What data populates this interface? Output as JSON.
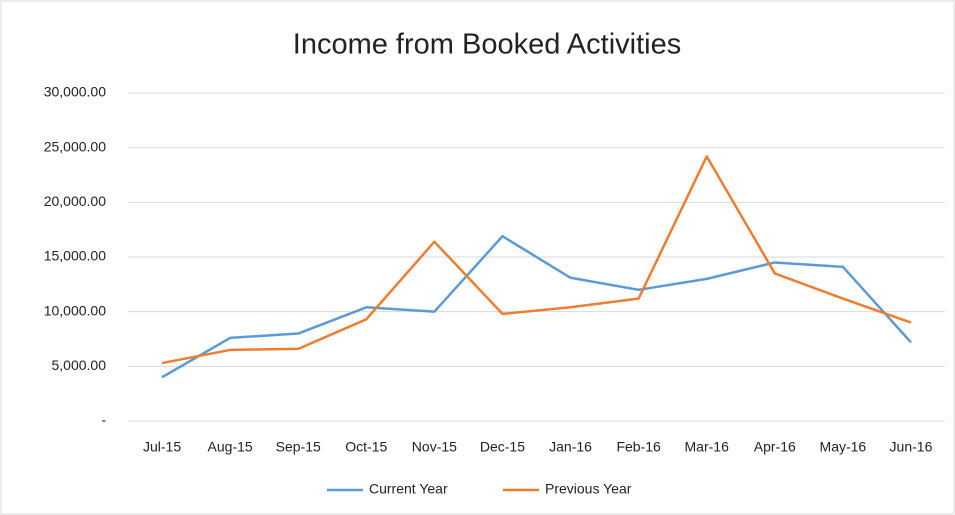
{
  "chart_data": {
    "type": "line",
    "title": "Income from Booked Activities",
    "categories": [
      "Jul-15",
      "Aug-15",
      "Sep-15",
      "Oct-15",
      "Nov-15",
      "Dec-15",
      "Jan-16",
      "Feb-16",
      "Mar-16",
      "Apr-16",
      "May-16",
      "Jun-16"
    ],
    "series": [
      {
        "name": "Current Year",
        "color": "#5b9bd5",
        "values": [
          4000,
          7600,
          8000,
          10400,
          10000,
          16900,
          13100,
          12000,
          13000,
          14500,
          14100,
          7200
        ]
      },
      {
        "name": "Previous Year",
        "color": "#ed7d31",
        "values": [
          5300,
          6500,
          6600,
          9300,
          16400,
          9800,
          10400,
          11200,
          24200,
          13500,
          11200,
          9000
        ]
      }
    ],
    "ylim": [
      0,
      30000
    ],
    "yticks": [
      {
        "value": 0,
        "label": "-"
      },
      {
        "value": 5000,
        "label": "5,000.00"
      },
      {
        "value": 10000,
        "label": "10,000.00"
      },
      {
        "value": 15000,
        "label": "15,000.00"
      },
      {
        "value": 20000,
        "label": "20,000.00"
      },
      {
        "value": 25000,
        "label": "25,000.00"
      },
      {
        "value": 30000,
        "label": "30,000.00"
      }
    ],
    "grid": true,
    "legend": "bottom"
  }
}
